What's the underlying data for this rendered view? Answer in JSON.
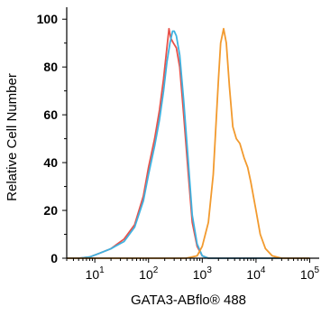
{
  "chart_data": {
    "type": "line",
    "xlabel": "GATA3-ABflo® 488",
    "ylabel": "Relative Cell Number",
    "x_scale": "log",
    "xlim": [
      3,
      150000
    ],
    "ylim": [
      0,
      105
    ],
    "x_major_ticks": [
      {
        "value": 10,
        "base": "10",
        "exp": "1"
      },
      {
        "value": 100,
        "base": "10",
        "exp": "2"
      },
      {
        "value": 1000,
        "base": "10",
        "exp": "3"
      },
      {
        "value": 10000,
        "base": "10",
        "exp": "4"
      },
      {
        "value": 100000,
        "base": "10",
        "exp": "5"
      }
    ],
    "y_ticks": [
      0,
      20,
      40,
      60,
      80,
      100
    ],
    "series": [
      {
        "color": "#e8524a",
        "x": [
          3,
          5,
          8,
          12,
          20,
          35,
          55,
          80,
          100,
          130,
          160,
          190,
          220,
          240,
          260,
          290,
          330,
          380,
          450,
          550,
          650,
          800,
          1000,
          1300,
          2000,
          5000,
          100000
        ],
        "y": [
          0,
          0,
          0.5,
          2,
          4,
          8,
          14,
          26,
          38,
          50,
          62,
          75,
          88,
          96,
          92,
          90,
          88,
          80,
          60,
          35,
          15,
          5,
          1,
          0,
          0,
          0,
          0
        ]
      },
      {
        "color": "#3fb2e0",
        "x": [
          3,
          5,
          8,
          12,
          20,
          35,
          55,
          80,
          100,
          130,
          160,
          190,
          220,
          250,
          280,
          300,
          330,
          380,
          450,
          550,
          650,
          800,
          1000,
          1300,
          2000,
          5000,
          100000
        ],
        "y": [
          0,
          0,
          0.5,
          2,
          4,
          7,
          13,
          24,
          35,
          47,
          58,
          70,
          82,
          90,
          95,
          95,
          93,
          85,
          66,
          40,
          18,
          6,
          1,
          0,
          0,
          0,
          0
        ]
      },
      {
        "color": "#f29a2e",
        "x": [
          3,
          100,
          500,
          800,
          1000,
          1300,
          1600,
          2000,
          2200,
          2500,
          2800,
          3200,
          3700,
          4300,
          5000,
          6000,
          7000,
          8000,
          10000,
          12000,
          15000,
          20000,
          30000,
          100000
        ],
        "y": [
          0,
          0,
          0,
          1,
          5,
          15,
          35,
          75,
          90,
          96,
          90,
          72,
          55,
          50,
          48,
          42,
          38,
          32,
          20,
          10,
          4,
          1,
          0,
          0
        ]
      }
    ]
  }
}
